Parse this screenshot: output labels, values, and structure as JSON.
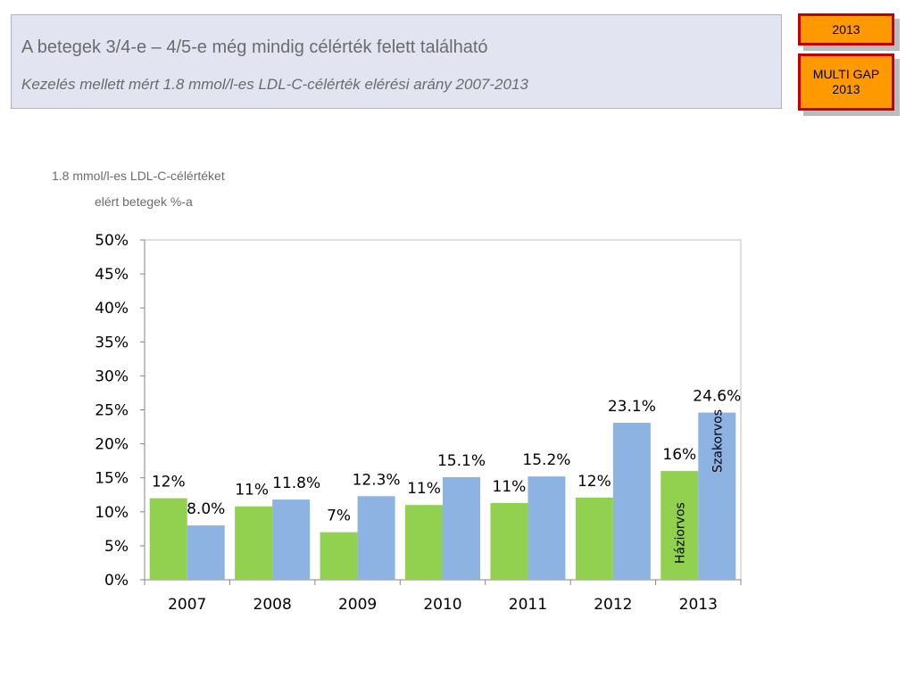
{
  "header": {
    "title": "A betegek 3/4-e – 4/5-e még mindig célérték felett található",
    "subtitle": "Kezelés mellett mért 1.8 mmol/l-es LDL-C-célérték elérési arány 2007-2013"
  },
  "badges": {
    "year": "2013",
    "gap_line1": "MULTI GAP",
    "gap_line2": "2013"
  },
  "chart_data": {
    "type": "bar",
    "title": "",
    "ylabel_line1": "1.8 mmol/l-es LDL-C-célértéket",
    "ylabel_line2": "elért betegek %-a",
    "xlabel": "",
    "categories": [
      "2007",
      "2008",
      "2009",
      "2010",
      "2011",
      "2012",
      "2013"
    ],
    "y_ticks": [
      "0%",
      "5%",
      "10%",
      "15%",
      "20%",
      "25%",
      "30%",
      "35%",
      "40%",
      "45%",
      "50%"
    ],
    "ylim": [
      0,
      50
    ],
    "grid": false,
    "series": [
      {
        "name": "Háziorvos",
        "color": "#92d050",
        "values": [
          12,
          10.8,
          7,
          11,
          11.3,
          12.1,
          16
        ],
        "labels": [
          "12%",
          "11%",
          "7%",
          "11%",
          "11%",
          "12%",
          "16%"
        ]
      },
      {
        "name": "Szakorvos",
        "color": "#8db3e2",
        "values": [
          8.0,
          11.8,
          12.3,
          15.1,
          15.2,
          23.1,
          24.6
        ],
        "labels": [
          "8.0%",
          "11.8%",
          "12.3%",
          "15.1%",
          "15.2%",
          "23.1%",
          "24.6%"
        ]
      }
    ]
  }
}
